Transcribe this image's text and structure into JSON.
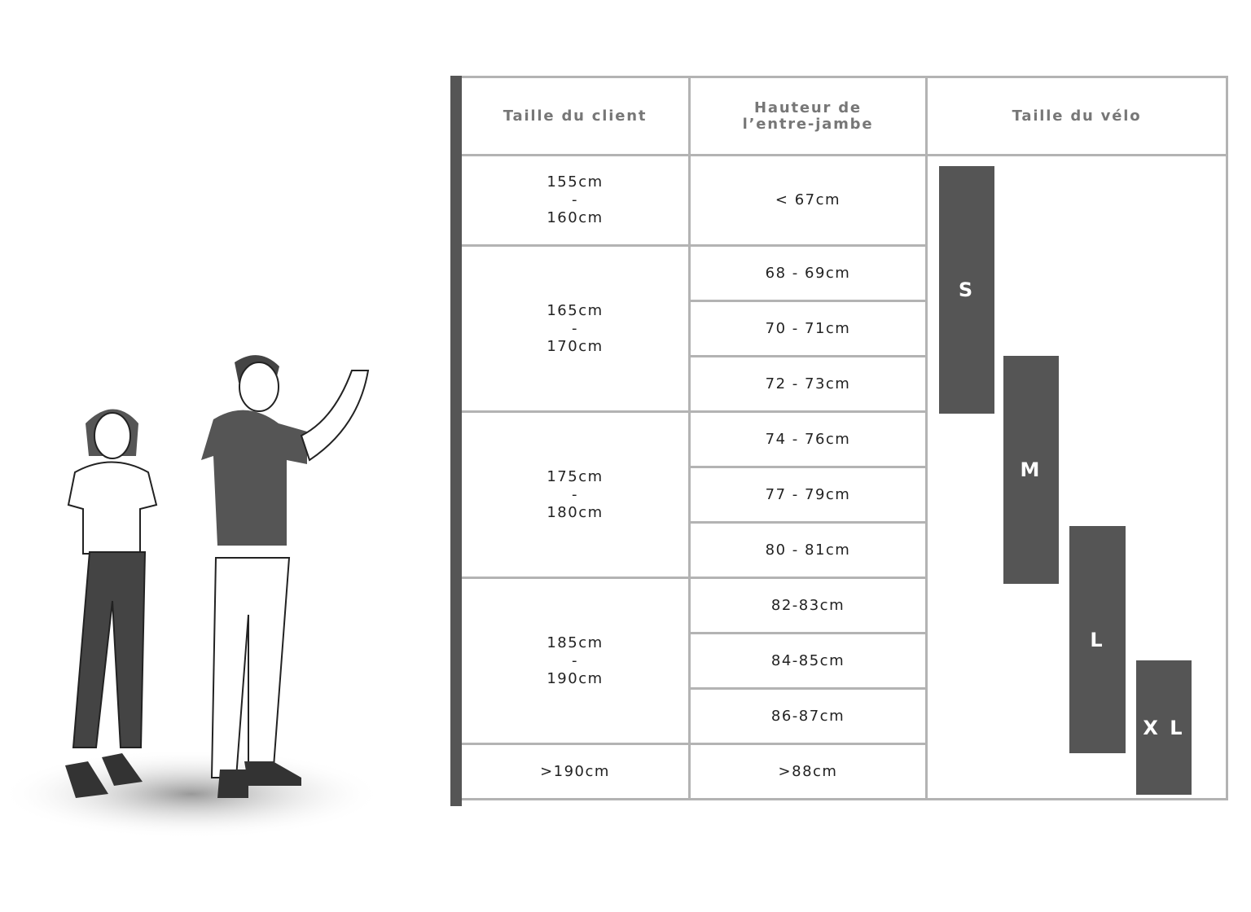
{
  "headers": {
    "client": "Taille du client",
    "inseam_line1": "Hauteur de",
    "inseam_line2": "l’entre-jambe",
    "bike": "Taille du vélo"
  },
  "client_sizes": [
    {
      "from": "155cm",
      "sep": "-",
      "to": "160cm"
    },
    {
      "from": "165cm",
      "sep": "-",
      "to": "170cm"
    },
    {
      "from": "175cm",
      "sep": "-",
      "to": "180cm"
    },
    {
      "from": "185cm",
      "sep": "-",
      "to": "190cm"
    },
    {
      "single": ">190cm"
    }
  ],
  "inseams": [
    "< 67cm",
    "68 - 69cm",
    "70 - 71cm",
    "72 - 73cm",
    "74 - 76cm",
    "77 - 79cm",
    "80 - 81cm",
    "82-83cm",
    "84-85cm",
    "86-87cm",
    ">88cm"
  ],
  "bike_sizes": [
    "S",
    "M",
    "L",
    "X L"
  ],
  "colors": {
    "bar": "#555555",
    "grid": "#b3b3b3",
    "header_text": "#777777"
  }
}
